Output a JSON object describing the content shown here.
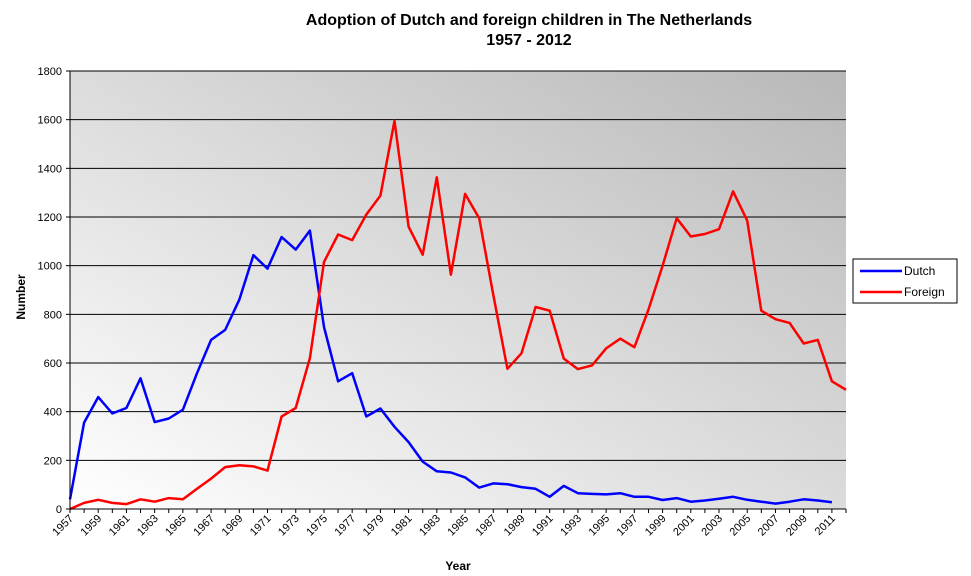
{
  "chart_data": {
    "type": "line",
    "title_line1": "Adoption of Dutch and foreign children in The Netherlands",
    "title_line2": "1957 - 2012",
    "xlabel": "Year",
    "ylabel": "Number",
    "ylim": [
      0,
      1800
    ],
    "yticks": [
      0,
      200,
      400,
      600,
      800,
      1000,
      1200,
      1400,
      1600,
      1800
    ],
    "grid": true,
    "legend_position": "right",
    "xtick_labels": [
      "1957",
      "1959",
      "1961",
      "1963",
      "1965",
      "1967",
      "1969",
      "1971",
      "1973",
      "1975",
      "1977",
      "1979",
      "1981",
      "1983",
      "1985",
      "1987",
      "1989",
      "1991",
      "1993",
      "1995",
      "1997",
      "1999",
      "2001",
      "2003",
      "2005",
      "2007",
      "2009",
      "2011"
    ],
    "x": [
      1957,
      1958,
      1959,
      1960,
      1961,
      1962,
      1963,
      1964,
      1965,
      1966,
      1967,
      1968,
      1969,
      1970,
      1971,
      1972,
      1973,
      1974,
      1975,
      1976,
      1977,
      1978,
      1979,
      1980,
      1981,
      1982,
      1983,
      1984,
      1985,
      1986,
      1987,
      1988,
      1989,
      1990,
      1991,
      1992,
      1993,
      1994,
      1995,
      1996,
      1997,
      1998,
      1999,
      2000,
      2001,
      2002,
      2003,
      2004,
      2005,
      2006,
      2007,
      2008,
      2009,
      2010,
      2011,
      2012
    ],
    "series": [
      {
        "name": "Dutch",
        "color": "#0000ff",
        "values": [
          40,
          355,
          460,
          393,
          415,
          537,
          357,
          372,
          408,
          558,
          695,
          736,
          860,
          1043,
          988,
          1118,
          1066,
          1144,
          748,
          525,
          558,
          380,
          413,
          338,
          275,
          195,
          155,
          150,
          130,
          88,
          105,
          102,
          90,
          83,
          50,
          95,
          65,
          62,
          60,
          65,
          50,
          50,
          37,
          45,
          30,
          35,
          42,
          50,
          38,
          30,
          22,
          30,
          40,
          35,
          28,
          null
        ]
      },
      {
        "name": "Foreign",
        "color": "#ff0000",
        "values": [
          0,
          25,
          38,
          25,
          20,
          40,
          30,
          45,
          40,
          83,
          125,
          172,
          180,
          175,
          158,
          380,
          415,
          620,
          1015,
          1128,
          1105,
          1210,
          1288,
          1595,
          1160,
          1045,
          1363,
          963,
          1295,
          1195,
          880,
          576,
          640,
          830,
          815,
          618,
          575,
          590,
          660,
          700,
          665,
          820,
          1000,
          1195,
          1120,
          1130,
          1150,
          1305,
          1185,
          815,
          780,
          765,
          680,
          695,
          525,
          490
        ]
      }
    ]
  }
}
